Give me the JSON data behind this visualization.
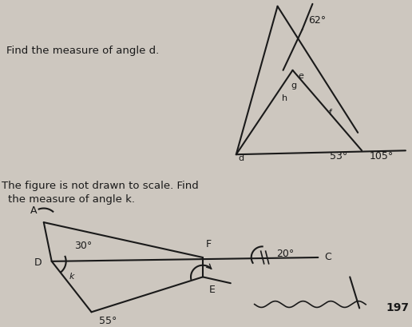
{
  "bg_color": "#cdc7bf",
  "text_color": "#1a1a1a",
  "title1": "Find the measure of angle d.",
  "title2_line1": "The figure is not drawn to scale. Find",
  "title2_line2": "the measure of angle k.",
  "page_number": "197",
  "fig1": {
    "angle_62": "62°",
    "angle_53": "53°",
    "angle_105": "105°",
    "label_d": "d",
    "label_e": "e",
    "label_g": "g",
    "label_h": "h",
    "label_f": "f"
  },
  "fig2": {
    "angle_30": "30°",
    "angle_20": "20°",
    "angle_55": "55°",
    "label_A": "A",
    "label_D": "D",
    "label_F": "F",
    "label_E": "E",
    "label_C": "C",
    "label_k": "k"
  }
}
